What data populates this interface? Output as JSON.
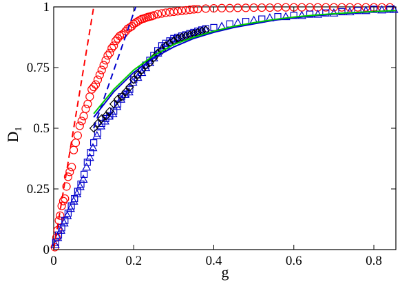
{
  "chart_data": {
    "type": "scatter",
    "xlabel": "g",
    "ylabel": "D",
    "ylabel_sub": "1",
    "xlim": [
      0,
      0.855
    ],
    "ylim": [
      0,
      1
    ],
    "x_ticks": [
      0,
      0.2,
      0.4,
      0.6,
      0.8
    ],
    "x_tick_labels": [
      "0",
      "0.2",
      "0.4",
      "0.6",
      "0.8"
    ],
    "y_ticks": [
      0,
      0.25,
      0.5,
      0.75,
      1
    ],
    "y_tick_labels": [
      "0",
      "0.25",
      "0.5",
      "0.75",
      "1"
    ],
    "grid": false,
    "colors": {
      "red": "#ff0000",
      "blue": "#0000cc",
      "black": "#000000",
      "green": "#00cc00"
    },
    "series": [
      {
        "marker": "circle",
        "color": "#ff0000",
        "x": [
          0.003,
          0.007,
          0.01,
          0.013,
          0.016,
          0.02,
          0.024,
          0.028,
          0.032,
          0.036,
          0.04,
          0.045,
          0.05,
          0.055,
          0.06,
          0.065,
          0.07,
          0.075,
          0.08,
          0.085,
          0.09,
          0.095,
          0.1,
          0.105,
          0.11,
          0.115,
          0.12,
          0.125,
          0.13,
          0.135,
          0.14,
          0.145,
          0.15,
          0.155,
          0.16,
          0.165,
          0.17,
          0.175,
          0.18,
          0.185,
          0.19,
          0.195,
          0.2,
          0.205,
          0.21,
          0.215,
          0.22,
          0.225,
          0.23,
          0.235,
          0.24,
          0.245,
          0.25,
          0.26,
          0.27,
          0.28,
          0.29,
          0.3,
          0.31,
          0.32,
          0.33,
          0.34,
          0.35,
          0.36,
          0.38,
          0.4,
          0.42,
          0.44,
          0.46,
          0.48,
          0.5,
          0.52,
          0.54,
          0.56,
          0.58,
          0.6,
          0.62,
          0.64,
          0.66,
          0.68,
          0.7,
          0.72,
          0.74,
          0.76,
          0.78,
          0.8,
          0.82,
          0.84
        ],
        "y": [
          0.01,
          0.05,
          0.08,
          0.12,
          0.14,
          0.18,
          0.2,
          0.21,
          0.26,
          0.3,
          0.32,
          0.34,
          0.41,
          0.44,
          0.47,
          0.51,
          0.53,
          0.55,
          0.58,
          0.6,
          0.63,
          0.66,
          0.67,
          0.68,
          0.7,
          0.72,
          0.74,
          0.76,
          0.78,
          0.8,
          0.81,
          0.83,
          0.84,
          0.86,
          0.87,
          0.88,
          0.885,
          0.89,
          0.9,
          0.91,
          0.915,
          0.92,
          0.93,
          0.935,
          0.94,
          0.945,
          0.95,
          0.952,
          0.955,
          0.958,
          0.96,
          0.962,
          0.965,
          0.97,
          0.973,
          0.976,
          0.978,
          0.98,
          0.982,
          0.984,
          0.986,
          0.988,
          0.99,
          0.991,
          0.993,
          0.994,
          0.995,
          0.995,
          0.996,
          0.996,
          0.997,
          0.997,
          0.997,
          0.998,
          0.998,
          0.998,
          0.998,
          0.998,
          0.998,
          0.998,
          0.998,
          0.998,
          0.998,
          0.998,
          0.998,
          0.998,
          0.998,
          0.998
        ]
      },
      {
        "marker": "square",
        "color": "#0000cc",
        "x": [
          0.005,
          0.012,
          0.02,
          0.028,
          0.036,
          0.044,
          0.052,
          0.06,
          0.068,
          0.076,
          0.084,
          0.092,
          0.1,
          0.11,
          0.12,
          0.13,
          0.14,
          0.15,
          0.16,
          0.17,
          0.18,
          0.19,
          0.2,
          0.21,
          0.22,
          0.23,
          0.24,
          0.25,
          0.26,
          0.27,
          0.28,
          0.29,
          0.3,
          0.31,
          0.32,
          0.33,
          0.34,
          0.35,
          0.36,
          0.37,
          0.38,
          0.4,
          0.44,
          0.48,
          0.52,
          0.56,
          0.6,
          0.64,
          0.68,
          0.72,
          0.76,
          0.8,
          0.84
        ],
        "y": [
          0.03,
          0.06,
          0.09,
          0.12,
          0.15,
          0.18,
          0.21,
          0.24,
          0.27,
          0.31,
          0.36,
          0.4,
          0.44,
          0.48,
          0.52,
          0.54,
          0.55,
          0.57,
          0.6,
          0.63,
          0.64,
          0.66,
          0.7,
          0.72,
          0.74,
          0.76,
          0.78,
          0.8,
          0.82,
          0.84,
          0.85,
          0.86,
          0.87,
          0.875,
          0.88,
          0.885,
          0.89,
          0.895,
          0.9,
          0.905,
          0.91,
          0.915,
          0.93,
          0.94,
          0.95,
          0.96,
          0.965,
          0.97,
          0.975,
          0.98,
          0.985,
          0.99,
          0.99
        ]
      },
      {
        "marker": "triangle",
        "color": "#0000cc",
        "x": [
          0.004,
          0.01,
          0.018,
          0.026,
          0.034,
          0.042,
          0.05,
          0.058,
          0.066,
          0.074,
          0.082,
          0.09,
          0.098,
          0.108,
          0.118,
          0.128,
          0.138,
          0.148,
          0.158,
          0.168,
          0.178,
          0.188,
          0.198,
          0.21,
          0.22,
          0.23,
          0.24,
          0.25,
          0.26,
          0.27,
          0.28,
          0.29,
          0.3,
          0.31,
          0.32,
          0.33,
          0.34,
          0.35,
          0.36,
          0.37,
          0.38,
          0.42,
          0.46,
          0.5,
          0.54,
          0.58,
          0.62,
          0.66,
          0.7,
          0.74,
          0.78,
          0.82,
          0.85
        ],
        "y": [
          0.02,
          0.05,
          0.08,
          0.11,
          0.14,
          0.17,
          0.2,
          0.23,
          0.26,
          0.29,
          0.34,
          0.38,
          0.42,
          0.47,
          0.51,
          0.53,
          0.55,
          0.56,
          0.59,
          0.62,
          0.64,
          0.65,
          0.69,
          0.71,
          0.73,
          0.75,
          0.77,
          0.79,
          0.81,
          0.83,
          0.84,
          0.855,
          0.865,
          0.87,
          0.875,
          0.88,
          0.885,
          0.89,
          0.895,
          0.9,
          0.905,
          0.92,
          0.935,
          0.945,
          0.955,
          0.96,
          0.965,
          0.97,
          0.975,
          0.98,
          0.985,
          0.988,
          0.99
        ]
      },
      {
        "marker": "diamond",
        "color": "#000000",
        "x": [
          0.1,
          0.11,
          0.12,
          0.13,
          0.14,
          0.15,
          0.16,
          0.17,
          0.18,
          0.19,
          0.2,
          0.21,
          0.22,
          0.23,
          0.24,
          0.25,
          0.26,
          0.27,
          0.28,
          0.29,
          0.3,
          0.31,
          0.32,
          0.33,
          0.34,
          0.35,
          0.36,
          0.37,
          0.38
        ],
        "y": [
          0.5,
          0.52,
          0.54,
          0.55,
          0.57,
          0.6,
          0.62,
          0.63,
          0.65,
          0.67,
          0.7,
          0.72,
          0.74,
          0.76,
          0.77,
          0.79,
          0.81,
          0.82,
          0.84,
          0.85,
          0.86,
          0.87,
          0.875,
          0.88,
          0.885,
          0.89,
          0.895,
          0.9,
          0.905
        ]
      },
      {
        "line": "dashed",
        "color": "#ff0000",
        "x": [
          0,
          0.1
        ],
        "y": [
          0,
          1
        ]
      },
      {
        "line": "dashed",
        "color": "#0000cc",
        "x": [
          0.1,
          0.205
        ],
        "y": [
          0.5,
          1
        ]
      },
      {
        "line": "solid",
        "color": "#0000cc",
        "x": [
          0.1,
          0.15,
          0.2,
          0.25,
          0.3,
          0.35,
          0.4,
          0.45,
          0.5,
          0.55,
          0.6,
          0.65,
          0.7,
          0.75,
          0.8,
          0.855
        ],
        "y": [
          0.545,
          0.65,
          0.73,
          0.79,
          0.835,
          0.87,
          0.895,
          0.915,
          0.93,
          0.945,
          0.955,
          0.963,
          0.97,
          0.975,
          0.98,
          0.984
        ]
      },
      {
        "line": "solid",
        "color": "#00cc00",
        "x": [
          0.1,
          0.15,
          0.2,
          0.25,
          0.3,
          0.35,
          0.4,
          0.45,
          0.5,
          0.55,
          0.6,
          0.65,
          0.7,
          0.75,
          0.8,
          0.855
        ],
        "y": [
          0.56,
          0.66,
          0.74,
          0.8,
          0.845,
          0.875,
          0.9,
          0.92,
          0.935,
          0.948,
          0.958,
          0.966,
          0.972,
          0.977,
          0.981,
          0.985
        ]
      }
    ]
  }
}
